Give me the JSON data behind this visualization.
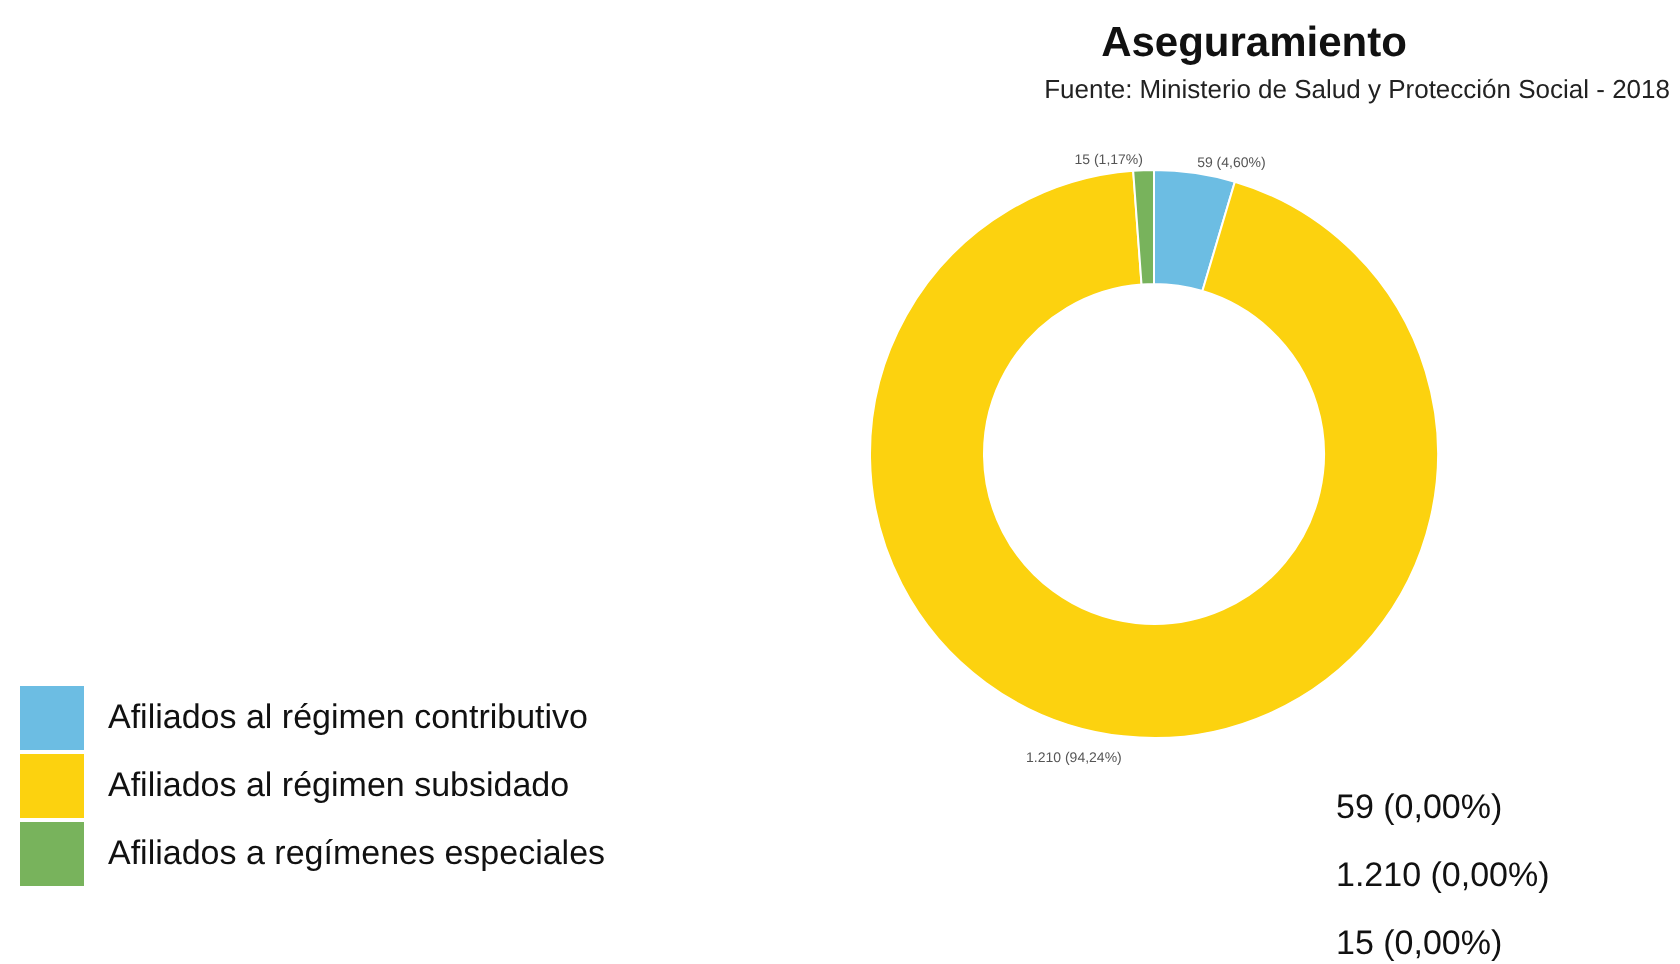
{
  "chart_data": {
    "type": "donut",
    "title": "Aseguramiento",
    "subtitle": "Fuente: Ministerio de Salud y Protección Social - 2018",
    "categories": [
      "Afiliados al régimen contributivo",
      "Afiliados al régimen subsidado",
      "Afiliados a regímenes especiales"
    ],
    "values": [
      59,
      1210,
      15
    ],
    "colors": [
      "#6cbde3",
      "#fcd20f",
      "#78b35c"
    ],
    "value_labels": [
      "59 (4,60%)",
      "1.210 (94,24%)",
      "15 (1,17%)"
    ],
    "annotations": [
      "59 (0,00%)",
      "1.210 (0,00%)",
      "15 (0,00%)"
    ],
    "legend": "bottom"
  }
}
